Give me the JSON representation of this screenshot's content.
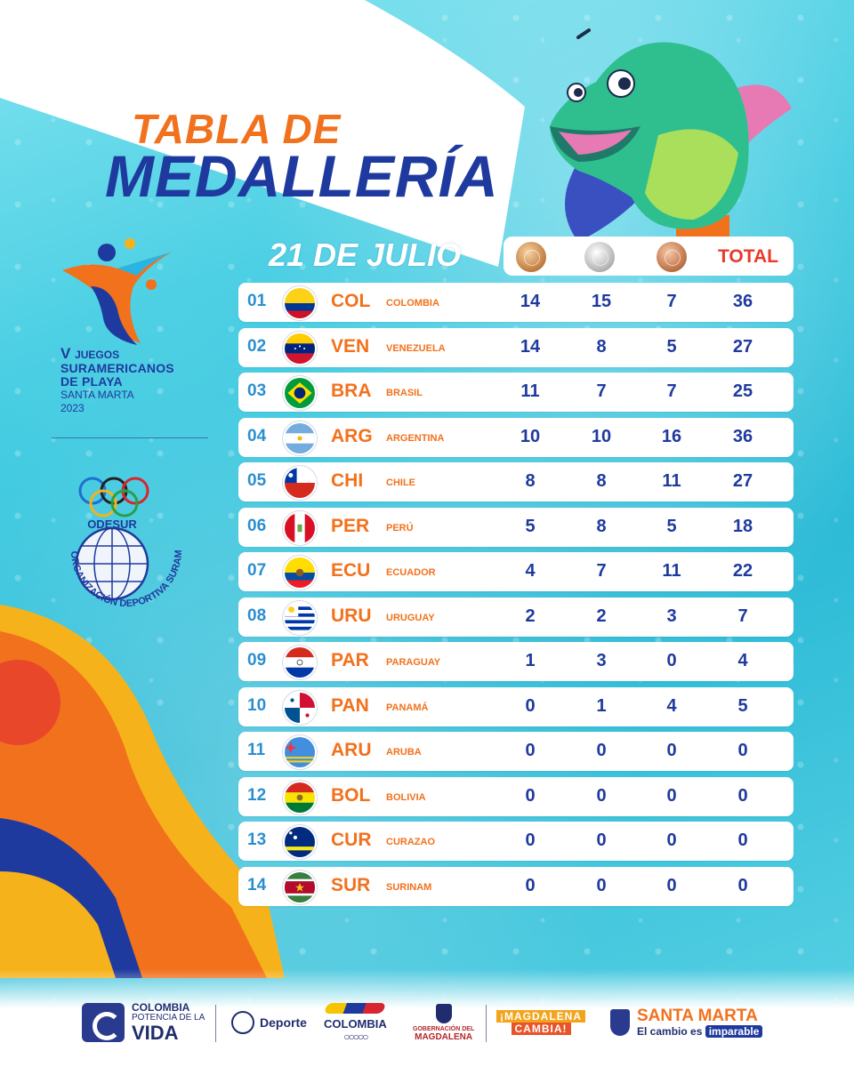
{
  "title": {
    "line1": "TABLA DE",
    "line2": "MEDALLERÍA"
  },
  "event": {
    "roman": "V",
    "line1": "JUEGOS",
    "line2": "SURAMERICANOS",
    "line3": "DE PLAYA",
    "line4": "SANTA MARTA",
    "line5": "2023"
  },
  "odesur": {
    "acronym": "ODESUR",
    "full_name": "ORGANIZACIÓN DEPORTIVA SURAMERICANA"
  },
  "table": {
    "date": "21 DE JULIO",
    "total_label": "TOTAL",
    "rows": [
      {
        "rank": "01",
        "code": "COL",
        "name": "COLOMBIA",
        "flag": "COL",
        "gold": "14",
        "silver": "15",
        "bronze": "7",
        "total": "36"
      },
      {
        "rank": "02",
        "code": "VEN",
        "name": "VENEZUELA",
        "flag": "VEN",
        "gold": "14",
        "silver": "8",
        "bronze": "5",
        "total": "27"
      },
      {
        "rank": "03",
        "code": "BRA",
        "name": "BRASIL",
        "flag": "BRA",
        "gold": "11",
        "silver": "7",
        "bronze": "7",
        "total": "25"
      },
      {
        "rank": "04",
        "code": "ARG",
        "name": "ARGENTINA",
        "flag": "ARG",
        "gold": "10",
        "silver": "10",
        "bronze": "16",
        "total": "36"
      },
      {
        "rank": "05",
        "code": "CHI",
        "name": "CHILE",
        "flag": "CHI",
        "gold": "8",
        "silver": "8",
        "bronze": "11",
        "total": "27"
      },
      {
        "rank": "06",
        "code": "PER",
        "name": "PERÚ",
        "flag": "PER",
        "gold": "5",
        "silver": "8",
        "bronze": "5",
        "total": "18"
      },
      {
        "rank": "07",
        "code": "ECU",
        "name": "ECUADOR",
        "flag": "ECU",
        "gold": "4",
        "silver": "7",
        "bronze": "11",
        "total": "22"
      },
      {
        "rank": "08",
        "code": "URU",
        "name": "URUGUAY",
        "flag": "URU",
        "gold": "2",
        "silver": "2",
        "bronze": "3",
        "total": "7"
      },
      {
        "rank": "09",
        "code": "PAR",
        "name": "PARAGUAY",
        "flag": "PAR",
        "gold": "1",
        "silver": "3",
        "bronze": "0",
        "total": "4"
      },
      {
        "rank": "10",
        "code": "PAN",
        "name": "PANAMÁ",
        "flag": "PAN",
        "gold": "0",
        "silver": "1",
        "bronze": "4",
        "total": "5"
      },
      {
        "rank": "11",
        "code": "ARU",
        "name": "ARUBA",
        "flag": "ARU",
        "gold": "0",
        "silver": "0",
        "bronze": "0",
        "total": "0"
      },
      {
        "rank": "12",
        "code": "BOL",
        "name": "BOLIVIA",
        "flag": "BOL",
        "gold": "0",
        "silver": "0",
        "bronze": "0",
        "total": "0"
      },
      {
        "rank": "13",
        "code": "CUR",
        "name": "CURAZAO",
        "flag": "CUR",
        "gold": "0",
        "silver": "0",
        "bronze": "0",
        "total": "0"
      },
      {
        "rank": "14",
        "code": "SUR",
        "name": "SURINAM",
        "flag": "SUR",
        "gold": "0",
        "silver": "0",
        "bronze": "0",
        "total": "0"
      }
    ]
  },
  "sponsors": {
    "colombia_vida": {
      "line1": "COLOMBIA",
      "line2": "POTENCIA DE LA",
      "line3": "VIDA"
    },
    "deporte": "Deporte",
    "colombia_olympic": "COLOMBIA",
    "gobernacion": {
      "line1": "GOBERNACIÓN DEL",
      "line2": "MAGDALENA"
    },
    "magdalena_cambia": {
      "line1": "¡MAGDALENA",
      "line2": "CAMBIA!"
    },
    "santa_marta": {
      "line1": "SANTA MARTA",
      "line2": "El cambio es",
      "line2_highlight": "imparable"
    }
  },
  "colors": {
    "orange": "#f2711c",
    "navy": "#1f3a9e",
    "rank_blue": "#2a8fd0",
    "total_red": "#ea3a2a"
  }
}
